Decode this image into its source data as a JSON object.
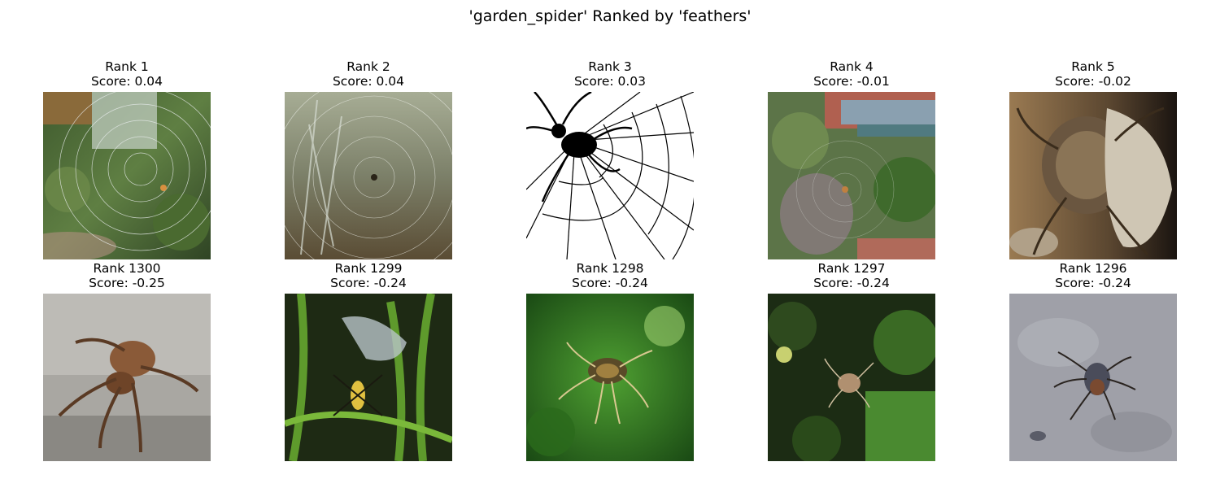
{
  "title": "'garden_spider' Ranked by 'feathers'",
  "panels": [
    {
      "rank": "Rank 1",
      "score": "Score: 0.04",
      "image": "spider-web-garden-photo"
    },
    {
      "rank": "Rank 2",
      "score": "Score: 0.04",
      "image": "dewy-web-lavender-photo"
    },
    {
      "rank": "Rank 3",
      "score": "Score: 0.03",
      "image": "black-spider-web-drawing"
    },
    {
      "rank": "Rank 4",
      "score": "Score: -0.01",
      "image": "spider-web-yard-photo"
    },
    {
      "rank": "Rank 5",
      "score": "Score: -0.02",
      "image": "spider-closeup-bark-photo"
    },
    {
      "rank": "Rank 1300",
      "score": "Score: -0.25",
      "image": "spider-on-concrete-photo"
    },
    {
      "rank": "Rank 1299",
      "score": "Score: -0.24",
      "image": "wasp-spider-grass-photo"
    },
    {
      "rank": "Rank 1298",
      "score": "Score: -0.24",
      "image": "spider-green-bokeh-photo"
    },
    {
      "rank": "Rank 1297",
      "score": "Score: -0.24",
      "image": "spider-dark-foliage-photo"
    },
    {
      "rank": "Rank 1296",
      "score": "Score: -0.24",
      "image": "spider-gray-stone-photo"
    }
  ]
}
